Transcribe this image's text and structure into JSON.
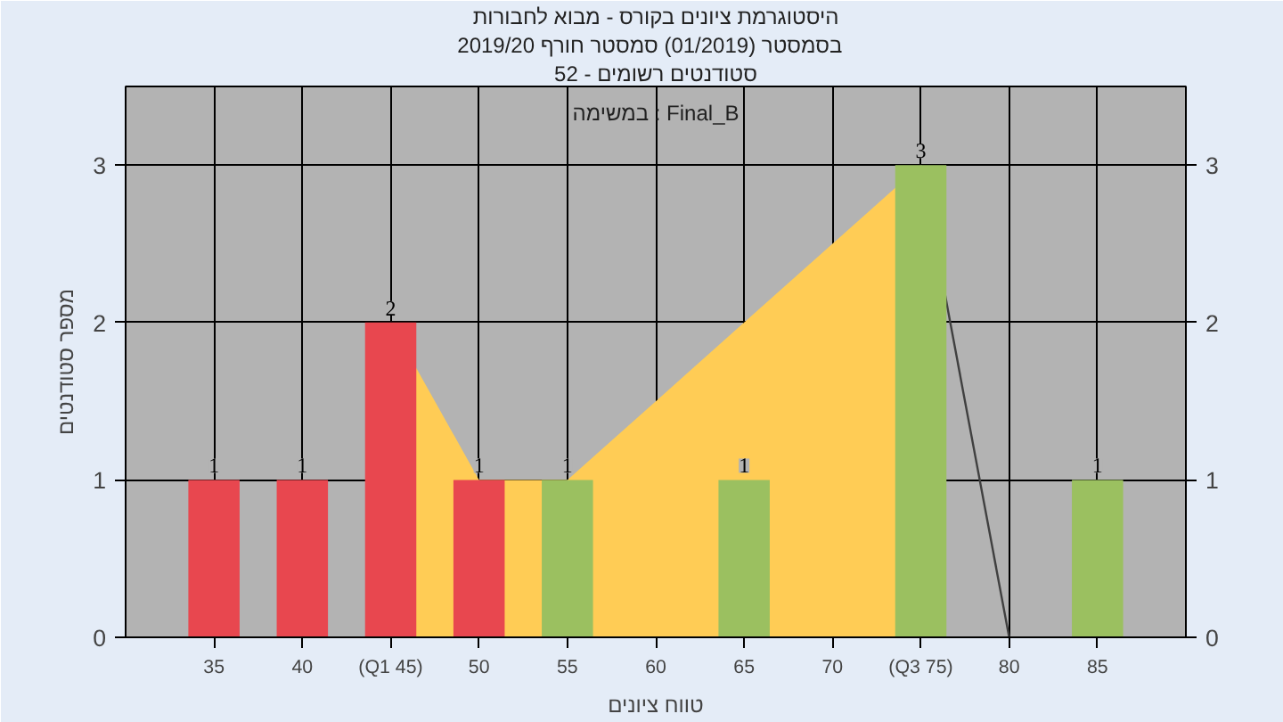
{
  "chart_data": {
    "type": "bar",
    "title": "היסטוגרמת ציונים בקורס - מבוא לחבורות",
    "subtitle": "בסמסטר  (01/2019)  סמסטר חורף 2019/20",
    "xlabel": "טווח ציונים",
    "ylabel": "מספר סטודנטים",
    "categories": [
      "35",
      "40",
      "(Q1 45)",
      "50",
      "55",
      "60",
      "65",
      "70",
      "(Q3 75)",
      "80",
      "85"
    ],
    "series": [
      {
        "type": "area",
        "color": "#ffcc55",
        "values": [
          null,
          null,
          2,
          1,
          1,
          1.5,
          2,
          2.5,
          3,
          null,
          null
        ]
      },
      {
        "type": "line",
        "color": "#404040",
        "values": [
          null,
          null,
          null,
          null,
          null,
          null,
          null,
          null,
          3,
          0,
          null
        ]
      },
      {
        "colors": [
          "#e8474f",
          "#e8474f",
          "#e8474f",
          "#e8474f",
          "#9bc060",
          "#9bc060",
          "#9bc060",
          "#9bc060",
          "#9bc060",
          "#9bc060",
          "#9bc060"
        ],
        "values": [
          1,
          1,
          2,
          1,
          1,
          0,
          1,
          0,
          3,
          0,
          1
        ],
        "value_labels": [
          "1",
          "1",
          "2",
          "1",
          "1",
          null,
          "1",
          null,
          "3",
          null,
          "1"
        ]
      }
    ],
    "ylim": [
      0,
      3.5
    ],
    "yticks": [
      0,
      1,
      2,
      3
    ],
    "y2lim": [
      0,
      3.5
    ],
    "y2ticks": [
      0,
      1,
      2,
      3
    ],
    "annotations": [
      "סטודנטים רשומים - 52",
      "במשימה : Final_B"
    ],
    "grid": true
  }
}
